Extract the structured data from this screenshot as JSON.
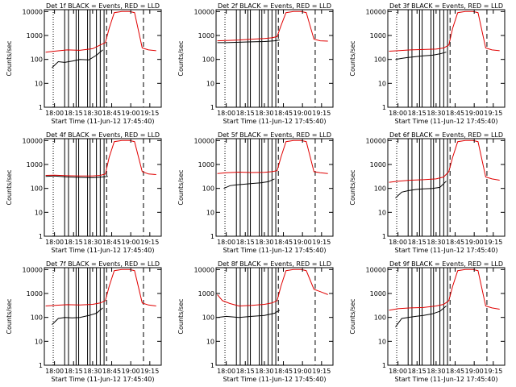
{
  "chart_data": [
    {
      "type": "line",
      "title": "Det 1f BLACK = Events, RED = LLD",
      "xlabel": "Start Time (11-Jun-12 17:45:40)",
      "ylabel": "Counts/sec",
      "ylog": true,
      "ylim": [
        1,
        12000
      ],
      "xlim": [
        "17:52",
        "19:24"
      ],
      "xticks": [
        "18:00",
        "18:15",
        "18:30",
        "18:45",
        "19:00",
        "19:15"
      ],
      "yticks": [
        "1",
        "10",
        "100",
        "1000",
        "10000"
      ],
      "series": [
        {
          "name": "Events",
          "x": [
            "17:58",
            "18:03",
            "18:08",
            "18:14",
            "18:20",
            "18:27",
            "18:33",
            "18:38"
          ],
          "values": [
            45,
            80,
            75,
            85,
            100,
            95,
            150,
            250
          ]
        },
        {
          "name": "LLD",
          "x": [
            "17:53",
            "18:00",
            "18:10",
            "18:20",
            "18:30",
            "18:36",
            "18:40",
            "18:43",
            "18:47",
            "18:53",
            "18:59",
            "19:03",
            "19:09",
            "19:14",
            "19:20"
          ],
          "values": [
            200,
            220,
            250,
            240,
            280,
            400,
            500,
            2000,
            9000,
            10000,
            10000,
            9000,
            300,
            250,
            230
          ]
        }
      ]
    },
    {
      "type": "line",
      "title": "Det 2f BLACK = Events, RED = LLD",
      "xlabel": "Start Time (11-Jun-12 17:45:40)",
      "ylabel": "Counts/sec",
      "ylog": true,
      "ylim": [
        1,
        12000
      ],
      "xlim": [
        "17:52",
        "19:24"
      ],
      "xticks": [
        "18:00",
        "18:15",
        "18:30",
        "18:45",
        "19:00",
        "19:15"
      ],
      "yticks": [
        "1",
        "10",
        "100",
        "1000",
        "10000"
      ],
      "series": [
        {
          "name": "Events",
          "x": [
            "17:53",
            "18:00",
            "18:10",
            "18:20",
            "18:30",
            "18:38",
            "18:42"
          ],
          "values": [
            500,
            500,
            520,
            540,
            560,
            600,
            650
          ]
        },
        {
          "name": "LLD",
          "x": [
            "17:53",
            "18:00",
            "18:10",
            "18:20",
            "18:30",
            "18:36",
            "18:40",
            "18:43",
            "18:47",
            "18:53",
            "18:59",
            "19:03",
            "19:09",
            "19:14",
            "19:20"
          ],
          "values": [
            600,
            620,
            650,
            700,
            750,
            800,
            900,
            2500,
            9000,
            10000,
            10000,
            9000,
            700,
            600,
            580
          ]
        }
      ]
    },
    {
      "type": "line",
      "title": "Det 3f BLACK = Events, RED = LLD",
      "xlabel": "Start Time (11-Jun-12 17:45:40)",
      "ylabel": "Counts/sec",
      "ylog": true,
      "ylim": [
        1,
        12000
      ],
      "xlim": [
        "17:52",
        "19:24"
      ],
      "xticks": [
        "18:00",
        "18:15",
        "18:30",
        "18:45",
        "19:00",
        "19:15"
      ],
      "yticks": [
        "1",
        "10",
        "100",
        "1000",
        "10000"
      ],
      "series": [
        {
          "name": "Events",
          "x": [
            "17:58",
            "18:03",
            "18:08",
            "18:14",
            "18:20",
            "18:27",
            "18:33",
            "18:38"
          ],
          "values": [
            100,
            110,
            120,
            130,
            140,
            150,
            170,
            200
          ]
        },
        {
          "name": "LLD",
          "x": [
            "17:53",
            "18:00",
            "18:10",
            "18:20",
            "18:30",
            "18:36",
            "18:40",
            "18:43",
            "18:47",
            "18:53",
            "18:59",
            "19:03",
            "19:09",
            "19:14",
            "19:20"
          ],
          "values": [
            220,
            230,
            250,
            260,
            270,
            300,
            400,
            2000,
            9000,
            10000,
            10000,
            9000,
            300,
            250,
            230
          ]
        }
      ]
    },
    {
      "type": "line",
      "title": "Det 4f BLACK = Events, RED = LLD",
      "xlabel": "Start Time (11-Jun-12 17:45:40)",
      "ylabel": "Counts/sec",
      "ylog": true,
      "ylim": [
        1,
        12000
      ],
      "xlim": [
        "17:52",
        "19:24"
      ],
      "xticks": [
        "18:00",
        "18:15",
        "18:30",
        "18:45",
        "19:00",
        "19:15"
      ],
      "yticks": [
        "1",
        "10",
        "100",
        "1000",
        "10000"
      ],
      "series": [
        {
          "name": "Events",
          "x": [
            "17:53",
            "18:00",
            "18:10",
            "18:20",
            "18:30",
            "18:38",
            "18:42"
          ],
          "values": [
            320,
            330,
            300,
            290,
            280,
            300,
            320
          ]
        },
        {
          "name": "LLD",
          "x": [
            "17:53",
            "18:00",
            "18:10",
            "18:20",
            "18:30",
            "18:36",
            "18:40",
            "18:43",
            "18:47",
            "18:53",
            "18:59",
            "19:03",
            "19:09",
            "19:14",
            "19:20"
          ],
          "values": [
            350,
            360,
            340,
            330,
            330,
            350,
            400,
            2000,
            9000,
            10000,
            10000,
            9000,
            500,
            400,
            380
          ]
        }
      ]
    },
    {
      "type": "line",
      "title": "Det 5f BLACK = Events, RED = LLD",
      "xlabel": "Start Time (11-Jun-12 17:45:40)",
      "ylabel": "Counts/sec",
      "ylog": true,
      "ylim": [
        1,
        12000
      ],
      "xlim": [
        "17:52",
        "19:24"
      ],
      "xticks": [
        "18:00",
        "18:15",
        "18:30",
        "18:45",
        "19:00",
        "19:15"
      ],
      "yticks": [
        "1",
        "10",
        "100",
        "1000",
        "10000"
      ],
      "series": [
        {
          "name": "Events",
          "x": [
            "17:58",
            "18:03",
            "18:08",
            "18:14",
            "18:20",
            "18:27",
            "18:33",
            "18:38"
          ],
          "values": [
            100,
            130,
            140,
            150,
            160,
            170,
            190,
            250
          ]
        },
        {
          "name": "LLD",
          "x": [
            "17:53",
            "18:00",
            "18:10",
            "18:20",
            "18:30",
            "18:36",
            "18:40",
            "18:43",
            "18:47",
            "18:53",
            "18:59",
            "19:03",
            "19:09",
            "19:14",
            "19:20"
          ],
          "values": [
            420,
            450,
            480,
            460,
            470,
            500,
            550,
            2000,
            9000,
            10000,
            10000,
            9000,
            500,
            450,
            420
          ]
        }
      ]
    },
    {
      "type": "line",
      "title": "Det 6f BLACK = Events, RED = LLD",
      "xlabel": "Start Time (11-Jun-12 17:45:40)",
      "ylabel": "Counts/sec",
      "ylog": true,
      "ylim": [
        1,
        12000
      ],
      "xlim": [
        "17:52",
        "19:24"
      ],
      "xticks": [
        "18:00",
        "18:15",
        "18:30",
        "18:45",
        "19:00",
        "19:15"
      ],
      "yticks": [
        "1",
        "10",
        "100",
        "1000",
        "10000"
      ],
      "series": [
        {
          "name": "Events",
          "x": [
            "17:58",
            "18:03",
            "18:08",
            "18:14",
            "18:20",
            "18:27",
            "18:33",
            "18:38"
          ],
          "values": [
            40,
            70,
            80,
            90,
            95,
            100,
            110,
            200
          ]
        },
        {
          "name": "LLD",
          "x": [
            "17:53",
            "18:00",
            "18:10",
            "18:20",
            "18:30",
            "18:36",
            "18:40",
            "18:43",
            "18:47",
            "18:53",
            "18:59",
            "19:03",
            "19:09",
            "19:14",
            "19:20"
          ],
          "values": [
            180,
            200,
            220,
            230,
            250,
            300,
            500,
            2000,
            9000,
            10000,
            10000,
            9000,
            300,
            250,
            220
          ]
        }
      ]
    },
    {
      "type": "line",
      "title": "Det 7f BLACK = Events, RED = LLD",
      "xlabel": "Start Time (11-Jun-12 17:45:40)",
      "ylabel": "Counts/sec",
      "ylog": true,
      "ylim": [
        1,
        12000
      ],
      "xlim": [
        "17:52",
        "19:24"
      ],
      "xticks": [
        "18:00",
        "18:15",
        "18:30",
        "18:45",
        "19:00",
        "19:15"
      ],
      "yticks": [
        "1",
        "10",
        "100",
        "1000",
        "10000"
      ],
      "series": [
        {
          "name": "Events",
          "x": [
            "17:58",
            "18:03",
            "18:08",
            "18:14",
            "18:20",
            "18:27",
            "18:33",
            "18:38"
          ],
          "values": [
            50,
            90,
            100,
            95,
            100,
            120,
            150,
            250
          ]
        },
        {
          "name": "LLD",
          "x": [
            "17:53",
            "18:00",
            "18:10",
            "18:20",
            "18:30",
            "18:36",
            "18:40",
            "18:43",
            "18:47",
            "18:53",
            "18:59",
            "19:03",
            "19:09",
            "19:14",
            "19:20"
          ],
          "values": [
            300,
            320,
            340,
            330,
            350,
            400,
            500,
            2000,
            9000,
            10000,
            10000,
            9000,
            400,
            330,
            300
          ]
        }
      ]
    },
    {
      "type": "line",
      "title": "Det 8f BLACK = Events, RED = LLD",
      "xlabel": "Start Time (11-Jun-12 17:45:40)",
      "ylabel": "Counts/sec",
      "ylog": true,
      "ylim": [
        1,
        12000
      ],
      "xlim": [
        "17:52",
        "19:24"
      ],
      "xticks": [
        "18:00",
        "18:15",
        "18:30",
        "18:45",
        "19:00",
        "19:15"
      ],
      "yticks": [
        "1",
        "10",
        "100",
        "1000",
        "10000"
      ],
      "series": [
        {
          "name": "Events",
          "x": [
            "17:53",
            "18:00",
            "18:10",
            "18:20",
            "18:30",
            "18:38",
            "18:42"
          ],
          "values": [
            100,
            110,
            100,
            110,
            120,
            150,
            200
          ]
        },
        {
          "name": "LLD",
          "x": [
            "17:53",
            "17:57",
            "18:03",
            "18:10",
            "18:20",
            "18:30",
            "18:36",
            "18:40",
            "18:43",
            "18:47",
            "18:53",
            "18:59",
            "19:03",
            "19:09",
            "19:14",
            "19:20"
          ],
          "values": [
            900,
            500,
            380,
            300,
            320,
            350,
            400,
            500,
            2000,
            9000,
            10000,
            10000,
            9000,
            1500,
            1200,
            900
          ]
        }
      ]
    },
    {
      "type": "line",
      "title": "Det 9f BLACK = Events, RED = LLD",
      "xlabel": "Start Time (11-Jun-12 17:45:40)",
      "ylabel": "Counts/sec",
      "ylog": true,
      "ylim": [
        1,
        12000
      ],
      "xlim": [
        "17:52",
        "19:24"
      ],
      "xticks": [
        "18:00",
        "18:15",
        "18:30",
        "18:45",
        "19:00",
        "19:15"
      ],
      "yticks": [
        "1",
        "10",
        "100",
        "1000",
        "10000"
      ],
      "series": [
        {
          "name": "Events",
          "x": [
            "17:58",
            "18:03",
            "18:08",
            "18:14",
            "18:20",
            "18:27",
            "18:33",
            "18:38"
          ],
          "values": [
            40,
            90,
            100,
            110,
            120,
            140,
            180,
            300
          ]
        },
        {
          "name": "LLD",
          "x": [
            "17:53",
            "18:00",
            "18:10",
            "18:20",
            "18:30",
            "18:36",
            "18:40",
            "18:43",
            "18:47",
            "18:53",
            "18:59",
            "19:03",
            "19:09",
            "19:14",
            "19:20"
          ],
          "values": [
            200,
            230,
            250,
            260,
            300,
            350,
            500,
            2000,
            9000,
            10000,
            10000,
            9000,
            300,
            250,
            220
          ]
        }
      ]
    }
  ],
  "overlay_times": {
    "dotted": [
      "17:59"
    ],
    "solid": [
      "18:08",
      "18:11",
      "18:17",
      "18:19",
      "18:26",
      "18:28",
      "18:33",
      "18:36",
      "18:39"
    ],
    "dashed": [
      "18:41",
      "19:10"
    ]
  },
  "colors": {
    "events": "#000000",
    "lld": "#e00000"
  }
}
